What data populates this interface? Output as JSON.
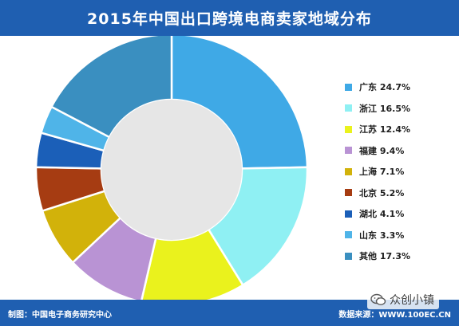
{
  "title": "2015年中国出口跨境电商卖家地域分布",
  "colors": {
    "bar_bg": "#1f5fb1",
    "bar_text": "#ffffff"
  },
  "footer": {
    "left": "制图：中国电子商务研究中心",
    "right": "数据来源：WWW.100EC.CN"
  },
  "watermark": {
    "text": "众创小镇",
    "icon": "wechat-logo-icon"
  },
  "chart_data": {
    "type": "pie",
    "donut": true,
    "title": "2015年中国出口跨境电商卖家地域分布",
    "legend_position": "right",
    "slices": [
      {
        "label": "广东",
        "value": 24.7,
        "display": "24.7%",
        "color": "#3fa9e6"
      },
      {
        "label": "浙江",
        "value": 16.5,
        "display": "16.5%",
        "color": "#8ff0f3"
      },
      {
        "label": "江苏",
        "value": 12.4,
        "display": "12.4%",
        "color": "#eaf21d"
      },
      {
        "label": "福建",
        "value": 9.4,
        "display": "9.4%",
        "color": "#b993d4"
      },
      {
        "label": "上海",
        "value": 7.1,
        "display": "7.1%",
        "color": "#d2b20a"
      },
      {
        "label": "北京",
        "value": 5.2,
        "display": "5.2%",
        "color": "#a63c12"
      },
      {
        "label": "湖北",
        "value": 4.1,
        "display": "4.1%",
        "color": "#1b5fb8"
      },
      {
        "label": "山东",
        "value": 3.3,
        "display": "3.3%",
        "color": "#4fb4e8"
      },
      {
        "label": "其他",
        "value": 17.3,
        "display": "17.3%",
        "color": "#3a8fc0"
      }
    ]
  }
}
